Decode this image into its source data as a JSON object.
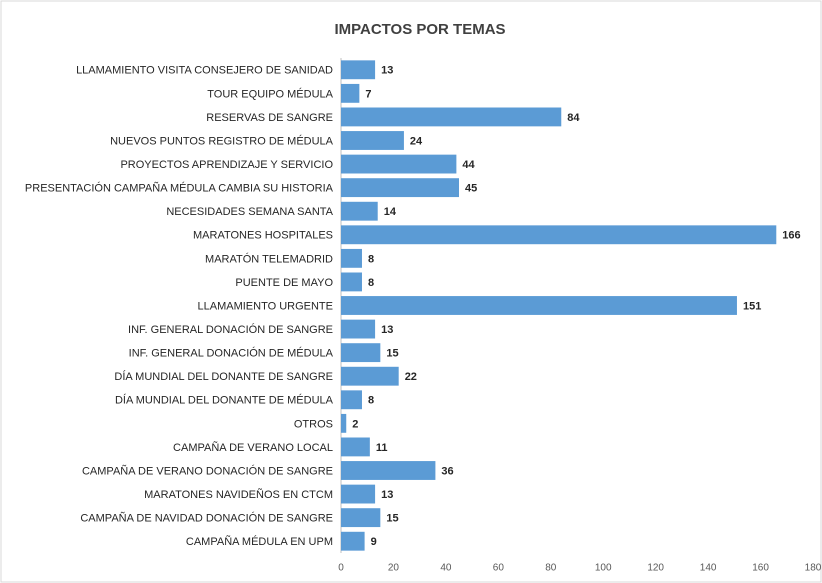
{
  "chart_data": {
    "type": "bar",
    "orientation": "horizontal",
    "title": "IMPACTOS POR TEMAS",
    "categories": [
      "LLAMAMIENTO VISITA CONSEJERO DE SANIDAD",
      "TOUR EQUIPO MÉDULA",
      "RESERVAS DE SANGRE",
      "NUEVOS PUNTOS REGISTRO DE MÉDULA",
      "PROYECTOS APRENDIZAJE Y SERVICIO",
      "PRESENTACIÓN CAMPAÑA MÉDULA CAMBIA SU HISTORIA",
      "NECESIDADES SEMANA SANTA",
      "MARATONES HOSPITALES",
      "MARATÓN TELEMADRID",
      "PUENTE DE MAYO",
      "LLAMAMIENTO URGENTE",
      "INF. GENERAL DONACIÓN DE SANGRE",
      "INF. GENERAL DONACIÓN DE MÉDULA",
      "DÍA MUNDIAL DEL DONANTE DE SANGRE",
      "DÍA MUNDIAL DEL DONANTE DE MÉDULA",
      "OTROS",
      "CAMPAÑA DE VERANO LOCAL",
      "CAMPAÑA DE VERANO DONACIÓN DE SANGRE",
      "MARATONES NAVIDEÑOS EN CTCM",
      "CAMPAÑA DE NAVIDAD DONACIÓN DE SANGRE",
      "CAMPAÑA MÉDULA EN UPM"
    ],
    "values": [
      13,
      7,
      84,
      24,
      44,
      45,
      14,
      166,
      8,
      8,
      151,
      13,
      15,
      22,
      8,
      2,
      11,
      36,
      13,
      15,
      9
    ],
    "color": "#5b9bd5",
    "xlim": [
      0,
      180
    ],
    "xticks": [
      0,
      20,
      40,
      60,
      80,
      100,
      120,
      140,
      160,
      180
    ],
    "grid": false
  }
}
